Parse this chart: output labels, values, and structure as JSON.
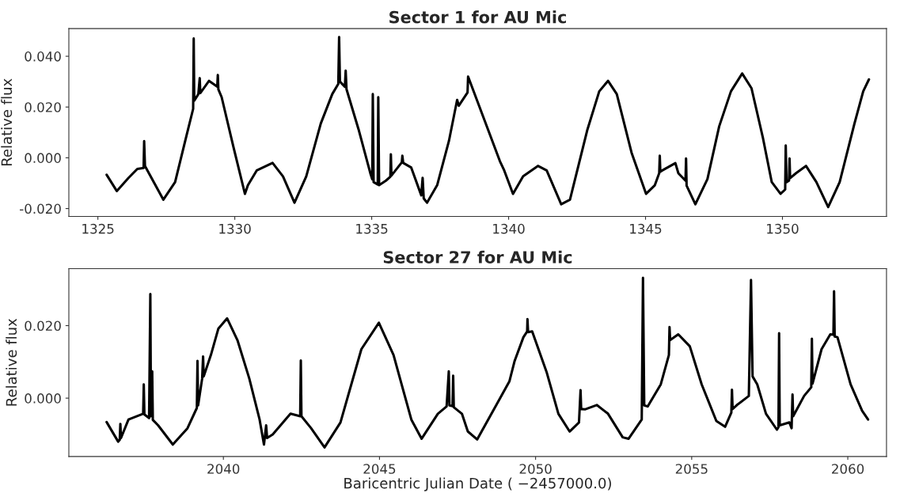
{
  "chart_data": [
    {
      "type": "line",
      "title": "Sector 1 for AU Mic",
      "ylabel": "Relative flux",
      "xlim": [
        1323.94,
        1353.8
      ],
      "ylim": [
        -0.0231,
        0.0509
      ],
      "xticks": [
        1325,
        1330,
        1335,
        1340,
        1345,
        1350
      ],
      "yticks": [
        {
          "value": -0.02,
          "label": "-0.020"
        },
        {
          "value": 0.0,
          "label": "0.000"
        },
        {
          "value": 0.02,
          "label": "0.020"
        },
        {
          "value": 0.04,
          "label": "0.040"
        }
      ],
      "series": [
        {
          "color": "#000000",
          "x": [
            1325.32,
            1325.69,
            1326.12,
            1326.44,
            1326.67,
            1326.69,
            1326.72,
            1327.39,
            1327.82,
            1328.24,
            1328.48,
            1328.5,
            1328.52,
            1328.67,
            1328.72,
            1328.74,
            1329.06,
            1329.36,
            1329.38,
            1329.4,
            1329.52,
            1329.95,
            1330.37,
            1330.48,
            1330.8,
            1331.38,
            1331.76,
            1332.18,
            1332.61,
            1333.14,
            1333.56,
            1333.78,
            1333.81,
            1333.84,
            1334.02,
            1334.05,
            1334.08,
            1334.52,
            1334.95,
            1335.02,
            1335.04,
            1335.07,
            1335.22,
            1335.24,
            1335.27,
            1335.52,
            1335.68,
            1335.7,
            1335.72,
            1336.1,
            1336.12,
            1336.15,
            1336.44,
            1336.81,
            1336.86,
            1336.9,
            1337.02,
            1337.39,
            1337.82,
            1338.12,
            1338.18,
            1338.5,
            1338.52,
            1339.68,
            1339.84,
            1340.16,
            1340.53,
            1341.07,
            1341.39,
            1341.92,
            1342.24,
            1342.88,
            1343.31,
            1343.63,
            1343.95,
            1344.49,
            1345.02,
            1345.34,
            1345.5,
            1345.52,
            1345.54,
            1345.61,
            1346.09,
            1346.2,
            1346.46,
            1346.48,
            1346.5,
            1346.82,
            1347.26,
            1347.69,
            1348.12,
            1348.53,
            1348.87,
            1349.29,
            1349.61,
            1349.93,
            1350.1,
            1350.12,
            1350.15,
            1350.24,
            1350.26,
            1350.28,
            1350.49,
            1350.86,
            1351.24,
            1351.67,
            1352.09,
            1352.63,
            1352.95,
            1353.16
          ],
          "values": [
            -0.0067,
            -0.0131,
            -0.0079,
            -0.0044,
            -0.004,
            0.0066,
            -0.0032,
            -0.0165,
            -0.0096,
            0.0089,
            0.0193,
            0.047,
            0.0225,
            0.0251,
            0.0314,
            0.0255,
            0.0303,
            0.028,
            0.0326,
            0.027,
            0.0239,
            0.0043,
            -0.0142,
            -0.0108,
            -0.005,
            -0.002,
            -0.0073,
            -0.0177,
            -0.0073,
            0.0135,
            0.0251,
            0.0291,
            0.0476,
            0.03,
            0.028,
            0.0343,
            0.027,
            0.0112,
            -0.0061,
            -0.0085,
            0.0251,
            -0.0096,
            -0.0105,
            0.0239,
            -0.0108,
            -0.009,
            -0.0075,
            0.0014,
            -0.007,
            -0.0018,
            0.0008,
            -0.002,
            -0.0038,
            -0.0148,
            -0.0079,
            -0.016,
            -0.0177,
            -0.0108,
            0.0066,
            0.0228,
            0.0205,
            0.0257,
            0.032,
            -0.0013,
            -0.005,
            -0.0142,
            -0.0073,
            -0.0032,
            -0.005,
            -0.0183,
            -0.0165,
            0.0112,
            0.0262,
            0.0303,
            0.0251,
            0.002,
            -0.0142,
            -0.0108,
            -0.006,
            0.0008,
            -0.0055,
            -0.005,
            -0.0021,
            -0.0061,
            -0.009,
            -0.0003,
            -0.011,
            -0.0183,
            -0.0084,
            0.0124,
            0.0262,
            0.0332,
            0.0274,
            0.0077,
            -0.0096,
            -0.0142,
            -0.0125,
            0.0049,
            -0.0096,
            -0.009,
            -0.0003,
            -0.008,
            -0.0061,
            -0.0032,
            -0.0096,
            -0.0194,
            -0.0096,
            0.0135,
            0.0262,
            0.0309
          ]
        }
      ]
    },
    {
      "type": "line",
      "title": "Sector 27 for AU Mic",
      "ylabel": "Relative flux",
      "xlabel": "Baricentric Julian Date ( −2457000.0)",
      "xlim": [
        2035.05,
        2061.24
      ],
      "ylim": [
        -0.0161,
        0.0357
      ],
      "xticks": [
        2040,
        2045,
        2050,
        2055,
        2060
      ],
      "yticks": [
        {
          "value": 0.0,
          "label": "0.000"
        },
        {
          "value": 0.02,
          "label": "0.020"
        }
      ],
      "series": [
        {
          "color": "#000000",
          "x": [
            2036.26,
            2036.63,
            2036.68,
            2036.7,
            2036.72,
            2036.96,
            2037.43,
            2037.45,
            2037.47,
            2037.62,
            2037.66,
            2037.68,
            2037.72,
            2037.74,
            2037.91,
            2038.38,
            2038.85,
            2039.15,
            2039.17,
            2039.19,
            2039.32,
            2039.35,
            2039.37,
            2039.6,
            2039.84,
            2040.12,
            2040.45,
            2040.83,
            2041.16,
            2041.3,
            2041.37,
            2041.4,
            2041.58,
            2042.15,
            2042.46,
            2042.48,
            2042.5,
            2042.81,
            2043.24,
            2043.75,
            2044.42,
            2044.98,
            2045.45,
            2046.02,
            2046.35,
            2046.87,
            2047.15,
            2047.22,
            2047.24,
            2047.34,
            2047.36,
            2047.38,
            2047.64,
            2047.83,
            2048.13,
            2049.16,
            2049.33,
            2049.61,
            2049.73,
            2049.74,
            2049.76,
            2049.89,
            2050.36,
            2050.73,
            2051.09,
            2051.39,
            2051.44,
            2051.46,
            2051.58,
            2051.96,
            2052.32,
            2052.79,
            2052.98,
            2053.4,
            2053.44,
            2053.48,
            2053.59,
            2054.01,
            2054.27,
            2054.29,
            2054.31,
            2054.57,
            2054.94,
            2055.32,
            2055.79,
            2056.07,
            2056.27,
            2056.29,
            2056.31,
            2056.45,
            2056.83,
            2056.9,
            2056.95,
            2057.1,
            2057.38,
            2057.73,
            2057.78,
            2057.8,
            2057.82,
            2058.13,
            2058.2,
            2058.23,
            2058.25,
            2058.6,
            2058.83,
            2058.85,
            2058.87,
            2059.16,
            2059.44,
            2059.54,
            2059.56,
            2059.58,
            2059.67,
            2060.09,
            2060.46,
            2060.65
          ],
          "values": [
            -0.0066,
            -0.012,
            -0.0115,
            -0.0071,
            -0.011,
            -0.0059,
            -0.0043,
            0.0038,
            -0.0045,
            -0.0055,
            0.0287,
            -0.005,
            0.0074,
            -0.006,
            -0.0075,
            -0.0128,
            -0.0083,
            -0.0027,
            0.0103,
            -0.002,
            0.0054,
            0.0115,
            0.006,
            0.0119,
            0.0192,
            0.022,
            0.016,
            0.0054,
            -0.0059,
            -0.0128,
            -0.0075,
            -0.011,
            -0.01,
            -0.0043,
            -0.005,
            0.0104,
            -0.005,
            -0.0083,
            -0.0136,
            -0.0067,
            0.0135,
            0.0208,
            0.0119,
            -0.0059,
            -0.0112,
            -0.0043,
            -0.0023,
            0.0074,
            -0.002,
            -0.0022,
            0.0062,
            -0.0025,
            -0.0043,
            -0.0092,
            -0.0114,
            0.0046,
            0.0103,
            0.0168,
            0.0184,
            0.0218,
            0.0182,
            0.0184,
            0.007,
            -0.0043,
            -0.0092,
            -0.0067,
            0.0022,
            -0.003,
            -0.0031,
            -0.0019,
            -0.0043,
            -0.0108,
            -0.0112,
            -0.0059,
            0.0332,
            -0.002,
            -0.0023,
            0.0038,
            0.0119,
            0.0196,
            0.016,
            0.0176,
            0.0143,
            0.0038,
            -0.0063,
            -0.0079,
            -0.004,
            0.0023,
            -0.003,
            -0.0019,
            0.0006,
            0.0326,
            0.006,
            0.0038,
            -0.0043,
            -0.0087,
            -0.008,
            0.0179,
            -0.0075,
            -0.0067,
            -0.0083,
            0.001,
            -0.005,
            0.0006,
            0.003,
            0.0164,
            0.004,
            0.0135,
            0.0176,
            0.0175,
            0.0295,
            0.017,
            0.0168,
            0.0038,
            -0.0035,
            -0.0059
          ]
        }
      ]
    }
  ]
}
